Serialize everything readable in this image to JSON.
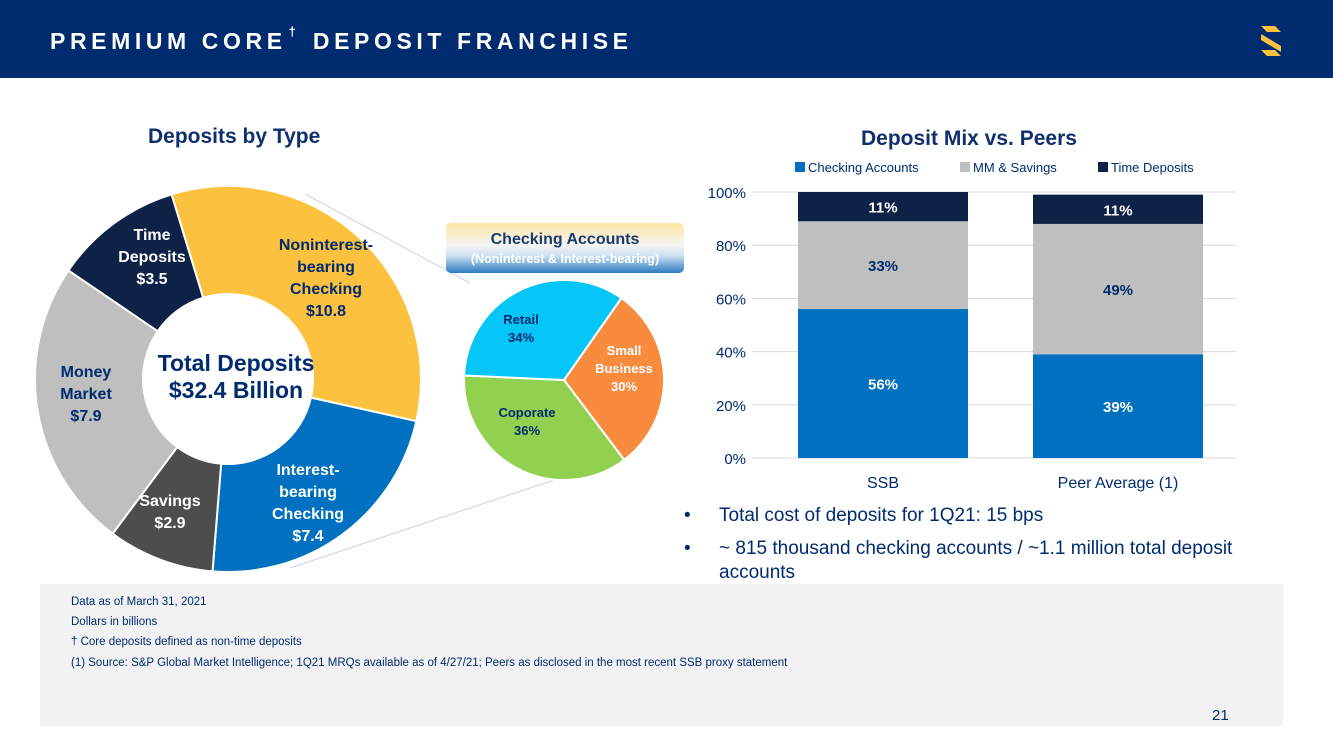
{
  "header": {
    "title_main": "PREMIUM CORE",
    "title_dagger": "†",
    "title_rest": "DEPOSIT FRANCHISE"
  },
  "colors": {
    "navy": "#002b6f",
    "checking_blue": "#0070c0",
    "mm_gray": "#bfbfbf",
    "time_navy": "#0e2147",
    "noninterest_gold": "#fcc13e",
    "savings_dark": "#4d4d4d",
    "retail_cyan": "#06c5f7",
    "small_business_orange": "#f88b3e",
    "corporate_green": "#92d050"
  },
  "chart_data": [
    {
      "type": "pie",
      "variant": "donut",
      "title": "Deposits by Type",
      "center_label": [
        "Total Deposits",
        "$32.4 Billion"
      ],
      "unit": "$ billions",
      "slices": [
        {
          "name": "Noninterest-bearing Checking",
          "label_lines": [
            "Noninterest-",
            "bearing",
            "Checking"
          ],
          "value": 10.8,
          "value_label": "$10.8"
        },
        {
          "name": "Interest-bearing Checking",
          "label_lines": [
            "Interest-",
            "bearing",
            "Checking"
          ],
          "value": 7.4,
          "value_label": "$7.4"
        },
        {
          "name": "Savings",
          "label_lines": [
            "Savings"
          ],
          "value": 2.9,
          "value_label": "$2.9"
        },
        {
          "name": "Money Market",
          "label_lines": [
            "Money",
            "Market"
          ],
          "value": 7.9,
          "value_label": "$7.9"
        },
        {
          "name": "Time Deposits",
          "label_lines": [
            "Time",
            "Deposits"
          ],
          "value": 3.5,
          "value_label": "$3.5"
        }
      ]
    },
    {
      "type": "pie",
      "title": "Checking Accounts",
      "subtitle": "(Noninterest & Interest-bearing)",
      "slices": [
        {
          "name": "Small Business",
          "label_lines": [
            "Small",
            "Business"
          ],
          "value": 30,
          "value_label": "30%"
        },
        {
          "name": "Coporate",
          "label_lines": [
            "Coporate"
          ],
          "value": 36,
          "value_label": "36%"
        },
        {
          "name": "Retail",
          "label_lines": [
            "Retail"
          ],
          "value": 34,
          "value_label": "34%"
        }
      ]
    },
    {
      "type": "bar",
      "stacked": true,
      "title": "Deposit Mix vs. Peers",
      "categories": [
        "SSB",
        "Peer Average (1)"
      ],
      "series": [
        {
          "name": "Checking Accounts",
          "values": [
            56,
            39
          ]
        },
        {
          "name": "MM & Savings",
          "values": [
            33,
            49
          ]
        },
        {
          "name": "Time Deposits",
          "values": [
            11,
            11
          ]
        }
      ],
      "ylim": [
        0,
        100
      ],
      "yticks": [
        0,
        20,
        40,
        60,
        80,
        100
      ],
      "ytick_labels": [
        "0%",
        "20%",
        "40%",
        "60%",
        "80%",
        "100%"
      ],
      "grid": true,
      "legend_placement": "top"
    }
  ],
  "bullets": [
    "Total cost of deposits for 1Q21: 15 bps",
    "~ 815 thousand checking accounts / ~1.1 million total deposit accounts"
  ],
  "bullet_symbol": "•",
  "footnotes": [
    "Data as of March 31, 2021",
    "Dollars in billions",
    "† Core deposits defined as non-time deposits",
    "(1) Source: S&P Global Market Intelligence; 1Q21 MRQs available as of 4/27/21; Peers as disclosed in the most recent SSB proxy statement"
  ],
  "page_number": "21"
}
